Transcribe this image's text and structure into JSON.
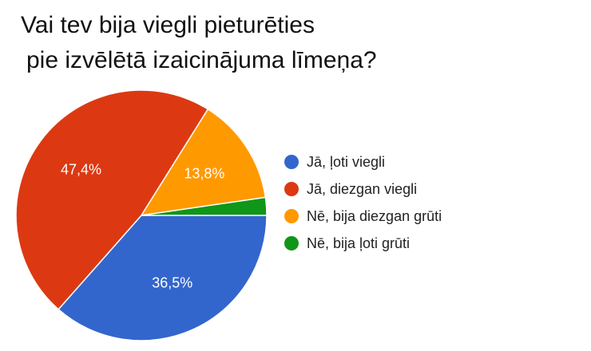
{
  "chart_data": {
    "type": "pie",
    "title_lines": [
      "Vai tev bija viegli pieturēties",
      "pie izvēlētā izaicinājuma līmeņa?"
    ],
    "categories": [
      "Jā, ļoti viegli",
      "Jā, diezgan viegli",
      "Nē, bija diezgan grūti",
      "Nē, bija ļoti grūti"
    ],
    "values": [
      36.5,
      47.4,
      13.8,
      2.3
    ],
    "data_labels": [
      "36,5%",
      "47,4%",
      "13,8%",
      ""
    ],
    "colors": [
      "#3366cc",
      "#dc3912",
      "#ff9900",
      "#109618"
    ],
    "legend_position": "right"
  }
}
